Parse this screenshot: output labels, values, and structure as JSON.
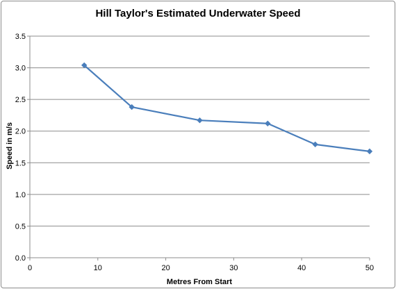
{
  "chart_data": {
    "type": "line",
    "title": "Hill Taylor's Estimated Underwater Speed",
    "xlabel": "Metres From Start",
    "ylabel": "Speed in m/s",
    "xlim": [
      0,
      50
    ],
    "ylim": [
      0,
      3.5
    ],
    "xticks": [
      0,
      10,
      20,
      30,
      40,
      50
    ],
    "yticks": [
      0,
      0.5,
      1,
      1.5,
      2,
      2.5,
      3,
      3.5
    ],
    "ytick_labels": [
      "0.0",
      "0.5",
      "1.0",
      "1.5",
      "2.0",
      "2.5",
      "3.0",
      "3.5"
    ],
    "grid": "horizontal",
    "legend": "none",
    "series_color": "#4a7ebb",
    "series": [
      {
        "x": [
          8,
          15,
          25,
          35,
          42,
          50
        ],
        "values": [
          3.04,
          2.38,
          2.17,
          2.12,
          1.79,
          1.68
        ]
      }
    ]
  }
}
